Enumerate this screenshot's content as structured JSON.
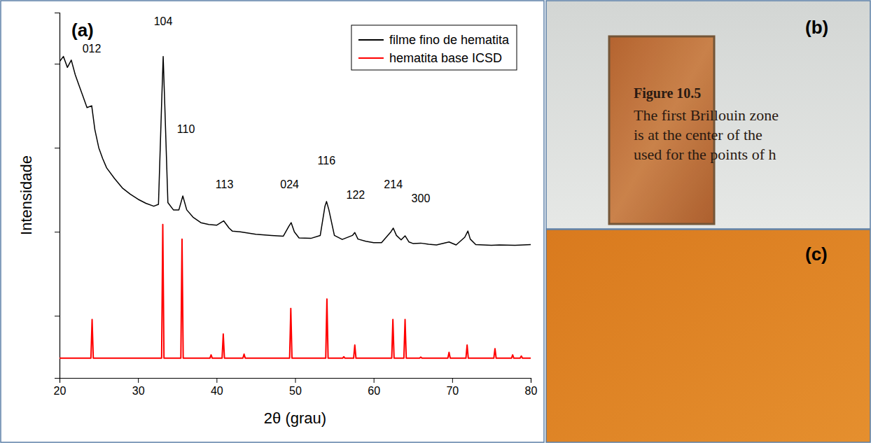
{
  "chart_data": {
    "type": "line",
    "panel_label": "(a)",
    "x_label": "2θ  (grau)",
    "y_label": "Intensidade",
    "xlim": [
      20,
      80
    ],
    "xticks": [
      20,
      30,
      40,
      50,
      60,
      70,
      80
    ],
    "ylim": [
      0,
      100
    ],
    "yticks": [
      17,
      40,
      63,
      86
    ],
    "tick_labels": "x",
    "legend": "upper right",
    "grid": false,
    "series": [
      {
        "name": "filme fino de hematita",
        "color": "#000000",
        "x": [
          20,
          20.5,
          21,
          21.5,
          22,
          22.5,
          23,
          23.5,
          24.1,
          24.5,
          25,
          25.5,
          26,
          27,
          28,
          29,
          30,
          31,
          32,
          32.6,
          33.0,
          33.2,
          33.4,
          33.8,
          34.5,
          35.2,
          35.7,
          36.2,
          37,
          38,
          39,
          40,
          40.9,
          41.6,
          42,
          43,
          45,
          47,
          48.5,
          49.2,
          49.5,
          49.9,
          50.5,
          52,
          53.2,
          53.8,
          54,
          54.3,
          55,
          56,
          57.3,
          57.6,
          58,
          59,
          60,
          61,
          62.2,
          62.5,
          62.9,
          63.5,
          64,
          64.5,
          65,
          66,
          67,
          68,
          69.6,
          70.5,
          71.6,
          72,
          72.3,
          73,
          74,
          75,
          76,
          78,
          80
        ],
        "values": [
          86.6,
          88,
          85,
          87,
          83,
          80,
          77,
          74,
          74.5,
          68,
          63,
          60,
          57.5,
          54.6,
          52,
          50.3,
          48.9,
          47.8,
          47,
          47.5,
          75,
          88,
          75,
          48,
          46,
          46,
          49.8,
          46,
          44,
          42.5,
          42,
          41.8,
          43,
          41,
          40.2,
          40,
          39.3,
          39,
          38.8,
          41.5,
          42.5,
          40,
          38.3,
          38.2,
          39,
          47,
          48.3,
          46,
          39,
          37.9,
          39,
          39.8,
          38,
          37.4,
          37,
          37,
          40,
          41,
          39,
          37.8,
          38.9,
          37.2,
          36.8,
          36.9,
          36.6,
          36.4,
          37.2,
          36.4,
          38.5,
          40.2,
          38,
          36.5,
          36.4,
          36.3,
          36.4,
          36.3,
          36.5
        ]
      },
      {
        "name": "hematita base ICSD",
        "color": "#ff0000",
        "x": [
          20,
          24.0,
          24.15,
          24.3,
          33.0,
          33.15,
          33.3,
          35.45,
          35.6,
          35.75,
          39.15,
          39.3,
          39.45,
          40.7,
          40.85,
          41.0,
          43.35,
          43.5,
          43.65,
          49.3,
          49.45,
          49.6,
          53.9,
          54.05,
          54.2,
          56.05,
          56.2,
          56.35,
          57.45,
          57.6,
          57.75,
          62.3,
          62.45,
          62.6,
          63.85,
          64.0,
          64.15,
          65.85,
          66.0,
          66.15,
          69.45,
          69.6,
          69.75,
          71.75,
          71.9,
          72.05,
          75.3,
          75.45,
          75.6,
          77.55,
          77.7,
          77.85,
          78.65,
          78.8,
          78.95,
          80
        ],
        "values": [
          5.4,
          5.4,
          16,
          5.4,
          5.4,
          42,
          5.4,
          5.4,
          38,
          5.4,
          5.4,
          6.3,
          5.4,
          5.4,
          12,
          5.4,
          5.4,
          6.5,
          5.4,
          5.4,
          19,
          5.4,
          5.4,
          21.6,
          5.4,
          5.4,
          5.8,
          5.4,
          5.4,
          9,
          5.4,
          5.4,
          16,
          5.4,
          5.4,
          16,
          5.4,
          5.4,
          5.7,
          5.4,
          5.4,
          7,
          5.4,
          5.4,
          9,
          5.4,
          5.4,
          8,
          5.4,
          5.4,
          6.3,
          5.4,
          5.4,
          6,
          5.4,
          5.4
        ]
      }
    ],
    "annotations": [
      {
        "text": "012",
        "x": 24.1,
        "y": 89
      },
      {
        "text": "104",
        "x": 33.2,
        "y": 96.5
      },
      {
        "text": "110",
        "x": 36.1,
        "y": 67
      },
      {
        "text": "113",
        "x": 41.0,
        "y": 52
      },
      {
        "text": "024",
        "x": 49.3,
        "y": 52
      },
      {
        "text": "116",
        "x": 54.0,
        "y": 58.5
      },
      {
        "text": "122",
        "x": 57.7,
        "y": 49
      },
      {
        "text": "214",
        "x": 62.5,
        "y": 52
      },
      {
        "text": "300",
        "x": 66.0,
        "y": 48
      }
    ]
  },
  "photos": [
    {
      "label": "(b)",
      "text": [
        "Figure 10.5",
        "The first Brillouin zone",
        "is at the center of the",
        "used for the points of h"
      ]
    },
    {
      "label": "(c)"
    }
  ]
}
